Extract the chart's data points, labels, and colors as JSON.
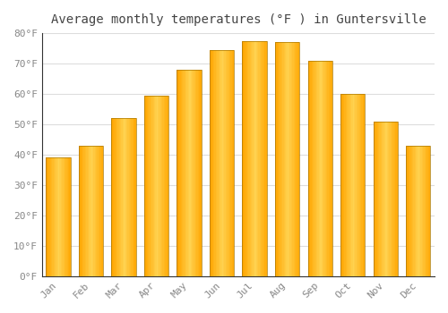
{
  "title": "Average monthly temperatures (°F ) in Guntersville",
  "months": [
    "Jan",
    "Feb",
    "Mar",
    "Apr",
    "May",
    "Jun",
    "Jul",
    "Aug",
    "Sep",
    "Oct",
    "Nov",
    "Dec"
  ],
  "values": [
    39,
    43,
    52,
    59.5,
    68,
    74.5,
    77.5,
    77,
    71,
    60,
    51,
    43
  ],
  "bar_color": "#FFA500",
  "bar_edge_color": "#CC8800",
  "bar_center_color": "#FFCC44",
  "background_color": "#FFFFFF",
  "plot_bg_color": "#FFFFFF",
  "grid_color": "#DDDDDD",
  "ylim": [
    0,
    80
  ],
  "yticks": [
    0,
    10,
    20,
    30,
    40,
    50,
    60,
    70,
    80
  ],
  "ytick_labels": [
    "0°F",
    "10°F",
    "20°F",
    "30°F",
    "40°F",
    "50°F",
    "60°F",
    "70°F",
    "80°F"
  ],
  "title_fontsize": 10,
  "tick_fontsize": 8,
  "tick_color": "#888888",
  "axis_color": "#333333",
  "title_color": "#444444"
}
